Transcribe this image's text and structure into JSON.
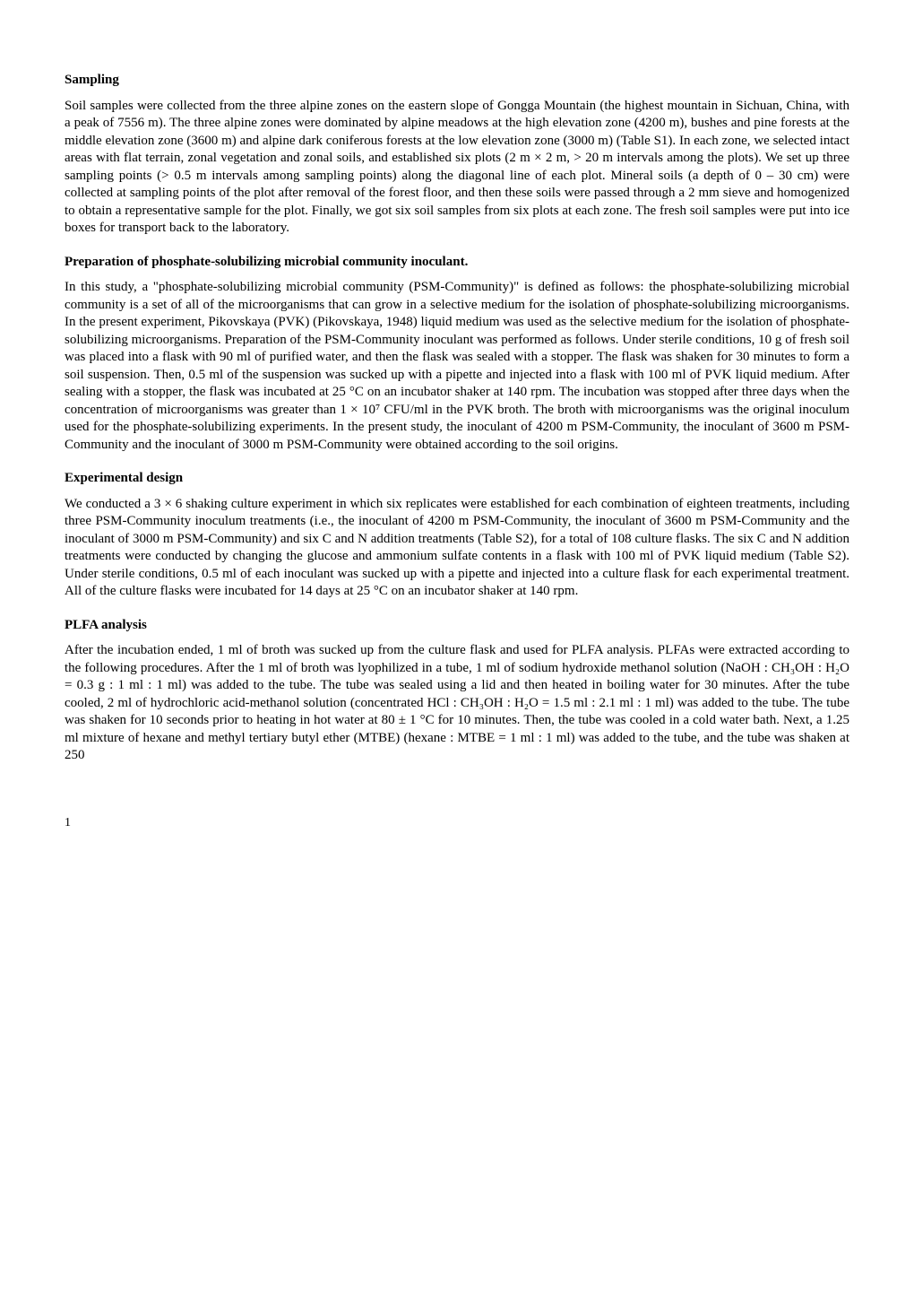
{
  "sections": [
    {
      "heading": "Sampling",
      "para": "Soil samples were collected from the three alpine zones on the eastern slope of Gongga Mountain (the highest mountain in Sichuan, China, with a peak of 7556 m). The three alpine zones were dominated by alpine meadows at the high elevation zone (4200 m), bushes and pine forests at the middle elevation zone (3600 m) and alpine dark coniferous forests at the low elevation zone (3000 m) (Table S1). In each zone, we selected intact areas with flat terrain, zonal vegetation and zonal soils, and established six plots (2 m × 2 m, > 20 m intervals among the plots). We set up three sampling points (> 0.5 m intervals among sampling points) along the diagonal line of each plot. Mineral soils (a depth of 0 – 30 cm) were collected at sampling points of the plot after removal of the forest floor, and then these soils were passed through a 2 mm sieve and homogenized to obtain a representative sample for the plot. Finally, we got six soil samples from six plots at each zone. The fresh soil samples were put into ice boxes for transport back to the laboratory."
    },
    {
      "heading": "Preparation of phosphate-solubilizing microbial community inoculant.",
      "para": "In this study, a \"phosphate-solubilizing microbial community (PSM-Community)\" is defined as follows: the phosphate-solubilizing microbial community is a set of all of the microorganisms that can grow in a selective medium for the isolation of phosphate-solubilizing microorganisms. In the present experiment, Pikovskaya (PVK) (Pikovskaya, 1948) liquid medium was used as the selective medium for the isolation of phosphate-solubilizing microorganisms. Preparation of the PSM-Community inoculant was performed as follows. Under sterile conditions, 10 g of fresh soil was placed into a flask with 90 ml of purified water, and then the flask was sealed with a stopper. The flask was shaken for 30 minutes to form a soil suspension. Then, 0.5 ml of the suspension was sucked up with a pipette and injected into a flask with 100 ml of PVK liquid medium. After sealing with a stopper, the flask was incubated at 25 °C on an incubator shaker at 140 rpm. The incubation was stopped after three days when the concentration of microorganisms was greater than 1 × 10⁷ CFU/ml in the PVK broth. The broth with microorganisms was the original inoculum used for the phosphate-solubilizing experiments. In the present study, the inoculant of 4200 m PSM-Community, the inoculant of 3600 m PSM-Community and the inoculant of 3000 m PSM-Community were obtained according to the soil origins."
    },
    {
      "heading": "Experimental design",
      "para": "We conducted a 3 × 6 shaking culture experiment in which six replicates were established for each combination of eighteen treatments, including three PSM-Community inoculum treatments (i.e., the inoculant of 4200 m PSM-Community, the inoculant of 3600 m PSM-Community and the inoculant of 3000 m PSM-Community) and six C and N addition treatments (Table S2), for a total of 108 culture flasks. The six C and N addition treatments were conducted by changing the glucose and ammonium sulfate contents in a flask with 100 ml of PVK liquid medium (Table S2). Under sterile conditions, 0.5 ml of each inoculant was sucked up with a pipette and injected into a culture flask for each experimental treatment. All of the culture flasks were incubated for 14 days at 25 °C on an incubator shaker at 140 rpm."
    },
    {
      "heading": "PLFA analysis",
      "para": "After the incubation ended, 1 ml of broth was sucked up from the culture flask and used for PLFA analysis. PLFAs were extracted according to the following procedures. After the 1 ml of broth was lyophilized in a tube, 1 ml of sodium hydroxide methanol solution (NaOH : CH₃OH : H₂O = 0.3 g : 1 ml : 1 ml) was added to the tube. The tube was sealed using a lid and then heated in boiling water for 30 minutes. After the tube cooled, 2 ml of hydrochloric acid-methanol solution (concentrated HCl : CH₃OH : H₂O = 1.5 ml : 2.1 ml : 1 ml) was added to the tube. The tube was shaken for 10 seconds prior to heating in hot water at 80 ± 1 °C for 10 minutes. Then, the tube was cooled in a cold water bath. Next, a 1.25 ml mixture of hexane and methyl tertiary butyl ether (MTBE) (hexane : MTBE = 1 ml : 1 ml) was added to the tube, and the tube was shaken at 250"
    }
  ],
  "page_num": "1"
}
